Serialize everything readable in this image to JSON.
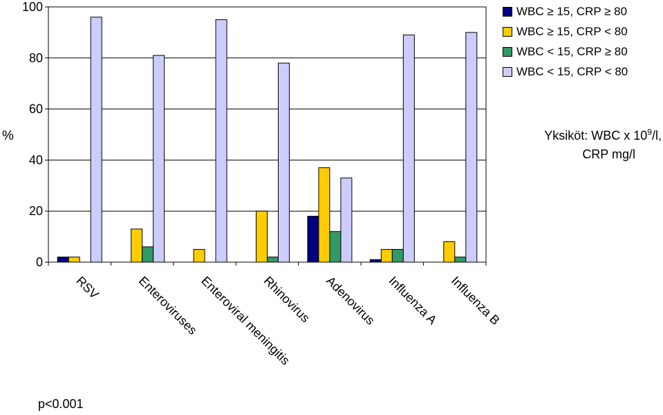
{
  "chart_data": {
    "type": "bar",
    "categories": [
      "RSV",
      "Enteroviruses",
      "Enteroviral meningitis",
      "Rhinovirus",
      "Adenovirus",
      "Influenza A",
      "Influenza B"
    ],
    "series": [
      {
        "name": "WBC ≥ 15, CRP ≥ 80",
        "color": "#000080",
        "values": [
          2,
          0,
          0,
          0,
          18,
          1,
          0
        ]
      },
      {
        "name": "WBC ≥ 15, CRP < 80",
        "color": "#ffcc00",
        "values": [
          2,
          13,
          5,
          20,
          37,
          5,
          8
        ]
      },
      {
        "name": "WBC < 15, CRP ≥ 80",
        "color": "#339966",
        "values": [
          0,
          6,
          0,
          2,
          12,
          5,
          2
        ]
      },
      {
        "name": "WBC < 15, CRP < 80",
        "color": "#ccccff",
        "values": [
          96,
          81,
          95,
          78,
          33,
          89,
          90
        ]
      }
    ],
    "ylabel": "%",
    "yticks": [
      0,
      20,
      40,
      60,
      80,
      100
    ],
    "ylim": [
      0,
      100
    ],
    "grid": true,
    "legend_position": "top-right"
  },
  "units_note": {
    "line1_prefix": "Yksiköt: WBC  x 10",
    "line1_sup": "9",
    "line1_suffix": "/l,",
    "line2": "CRP mg/l"
  },
  "p_value": "p<0.001"
}
